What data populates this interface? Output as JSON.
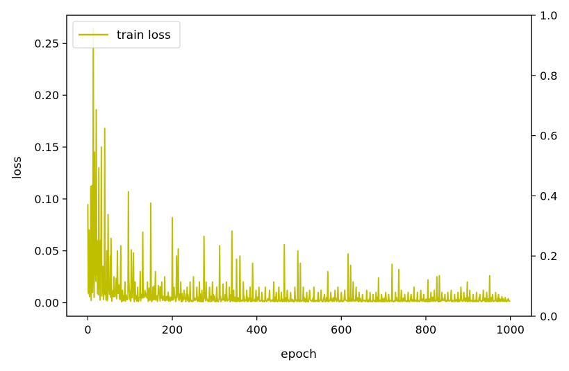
{
  "chart_data": {
    "type": "line",
    "title": "",
    "xlabel": "epoch",
    "ylabel": "loss",
    "xlim": [
      -50,
      1050
    ],
    "ylim": [
      -0.013,
      0.277
    ],
    "right_ylim": [
      0.0,
      1.0
    ],
    "grid": false,
    "legend": {
      "placement": "top-left"
    },
    "x_ticks": [
      0,
      200,
      400,
      600,
      800,
      1000
    ],
    "x_tick_labels": [
      "0",
      "200",
      "400",
      "600",
      "800",
      "1000"
    ],
    "y_ticks": [
      0.0,
      0.05,
      0.1,
      0.15,
      0.2,
      0.25
    ],
    "y_tick_labels": [
      "0.00",
      "0.05",
      "0.10",
      "0.15",
      "0.20",
      "0.25"
    ],
    "right_y_ticks": [
      0.0,
      0.2,
      0.4,
      0.6,
      0.8,
      1.0
    ],
    "right_y_tick_labels": [
      "0.0",
      "0.2",
      "0.4",
      "0.6",
      "0.8",
      "1.0"
    ],
    "series": [
      {
        "name": "train loss",
        "color": "#bfbf00",
        "x_range": [
          0,
          999
        ],
        "baseline": 0.003,
        "spikes": [
          [
            0,
            0.095
          ],
          [
            1,
            0.01
          ],
          [
            3,
            0.07
          ],
          [
            5,
            0.04
          ],
          [
            7,
            0.112
          ],
          [
            9,
            0.05
          ],
          [
            10,
            0.113
          ],
          [
            12,
            0.09
          ],
          [
            13,
            0.265
          ],
          [
            14,
            0.03
          ],
          [
            16,
            0.145
          ],
          [
            18,
            0.04
          ],
          [
            20,
            0.186
          ],
          [
            22,
            0.06
          ],
          [
            24,
            0.02
          ],
          [
            26,
            0.13
          ],
          [
            28,
            0.05
          ],
          [
            30,
            0.06
          ],
          [
            32,
            0.15
          ],
          [
            34,
            0.02
          ],
          [
            36,
            0.035
          ],
          [
            38,
            0.01
          ],
          [
            40,
            0.168
          ],
          [
            42,
            0.02
          ],
          [
            45,
            0.05
          ],
          [
            48,
            0.085
          ],
          [
            50,
            0.015
          ],
          [
            53,
            0.045
          ],
          [
            55,
            0.062
          ],
          [
            58,
            0.01
          ],
          [
            62,
            0.025
          ],
          [
            65,
            0.008
          ],
          [
            70,
            0.05
          ],
          [
            73,
            0.015
          ],
          [
            78,
            0.055
          ],
          [
            82,
            0.012
          ],
          [
            88,
            0.02
          ],
          [
            96,
            0.107
          ],
          [
            99,
            0.01
          ],
          [
            103,
            0.051
          ],
          [
            108,
            0.048
          ],
          [
            112,
            0.02
          ],
          [
            118,
            0.015
          ],
          [
            124,
            0.03
          ],
          [
            130,
            0.068
          ],
          [
            135,
            0.012
          ],
          [
            141,
            0.02
          ],
          [
            149,
            0.096
          ],
          [
            154,
            0.015
          ],
          [
            160,
            0.03
          ],
          [
            168,
            0.015
          ],
          [
            175,
            0.02
          ],
          [
            182,
            0.025
          ],
          [
            190,
            0.01
          ],
          [
            200,
            0.082
          ],
          [
            204,
            0.015
          ],
          [
            210,
            0.045
          ],
          [
            214,
            0.052
          ],
          [
            220,
            0.02
          ],
          [
            228,
            0.012
          ],
          [
            235,
            0.015
          ],
          [
            242,
            0.02
          ],
          [
            250,
            0.025
          ],
          [
            258,
            0.015
          ],
          [
            264,
            0.02
          ],
          [
            270,
            0.012
          ],
          [
            275,
            0.064
          ],
          [
            280,
            0.02
          ],
          [
            288,
            0.015
          ],
          [
            295,
            0.02
          ],
          [
            305,
            0.015
          ],
          [
            312,
            0.055
          ],
          [
            320,
            0.018
          ],
          [
            328,
            0.02
          ],
          [
            335,
            0.015
          ],
          [
            341,
            0.069
          ],
          [
            345,
            0.012
          ],
          [
            352,
            0.042
          ],
          [
            360,
            0.045
          ],
          [
            368,
            0.02
          ],
          [
            376,
            0.012
          ],
          [
            384,
            0.015
          ],
          [
            390,
            0.038
          ],
          [
            398,
            0.012
          ],
          [
            405,
            0.015
          ],
          [
            412,
            0.01
          ],
          [
            420,
            0.015
          ],
          [
            430,
            0.012
          ],
          [
            440,
            0.02
          ],
          [
            446,
            0.01
          ],
          [
            452,
            0.015
          ],
          [
            458,
            0.01
          ],
          [
            465,
            0.056
          ],
          [
            472,
            0.012
          ],
          [
            480,
            0.01
          ],
          [
            490,
            0.015
          ],
          [
            497,
            0.05
          ],
          [
            503,
            0.038
          ],
          [
            510,
            0.015
          ],
          [
            518,
            0.01
          ],
          [
            525,
            0.012
          ],
          [
            535,
            0.015
          ],
          [
            545,
            0.01
          ],
          [
            552,
            0.012
          ],
          [
            560,
            0.008
          ],
          [
            568,
            0.03
          ],
          [
            575,
            0.01
          ],
          [
            585,
            0.012
          ],
          [
            592,
            0.015
          ],
          [
            600,
            0.01
          ],
          [
            608,
            0.012
          ],
          [
            616,
            0.047
          ],
          [
            622,
            0.036
          ],
          [
            628,
            0.02
          ],
          [
            635,
            0.015
          ],
          [
            642,
            0.01
          ],
          [
            650,
            0.008
          ],
          [
            660,
            0.012
          ],
          [
            668,
            0.01
          ],
          [
            675,
            0.008
          ],
          [
            682,
            0.01
          ],
          [
            688,
            0.024
          ],
          [
            695,
            0.008
          ],
          [
            705,
            0.01
          ],
          [
            712,
            0.008
          ],
          [
            720,
            0.037
          ],
          [
            728,
            0.01
          ],
          [
            736,
            0.032
          ],
          [
            742,
            0.012
          ],
          [
            750,
            0.008
          ],
          [
            758,
            0.01
          ],
          [
            765,
            0.008
          ],
          [
            772,
            0.015
          ],
          [
            780,
            0.01
          ],
          [
            788,
            0.012
          ],
          [
            795,
            0.008
          ],
          [
            805,
            0.022
          ],
          [
            812,
            0.01
          ],
          [
            820,
            0.012
          ],
          [
            826,
            0.025
          ],
          [
            832,
            0.026
          ],
          [
            838,
            0.01
          ],
          [
            845,
            0.008
          ],
          [
            852,
            0.01
          ],
          [
            860,
            0.012
          ],
          [
            868,
            0.008
          ],
          [
            876,
            0.01
          ],
          [
            883,
            0.015
          ],
          [
            890,
            0.01
          ],
          [
            898,
            0.02
          ],
          [
            904,
            0.012
          ],
          [
            912,
            0.008
          ],
          [
            920,
            0.01
          ],
          [
            928,
            0.008
          ],
          [
            936,
            0.012
          ],
          [
            944,
            0.01
          ],
          [
            951,
            0.026
          ],
          [
            958,
            0.008
          ],
          [
            965,
            0.01
          ],
          [
            972,
            0.008
          ],
          [
            980,
            0.006
          ],
          [
            988,
            0.005
          ],
          [
            995,
            0.004
          ]
        ]
      }
    ]
  }
}
